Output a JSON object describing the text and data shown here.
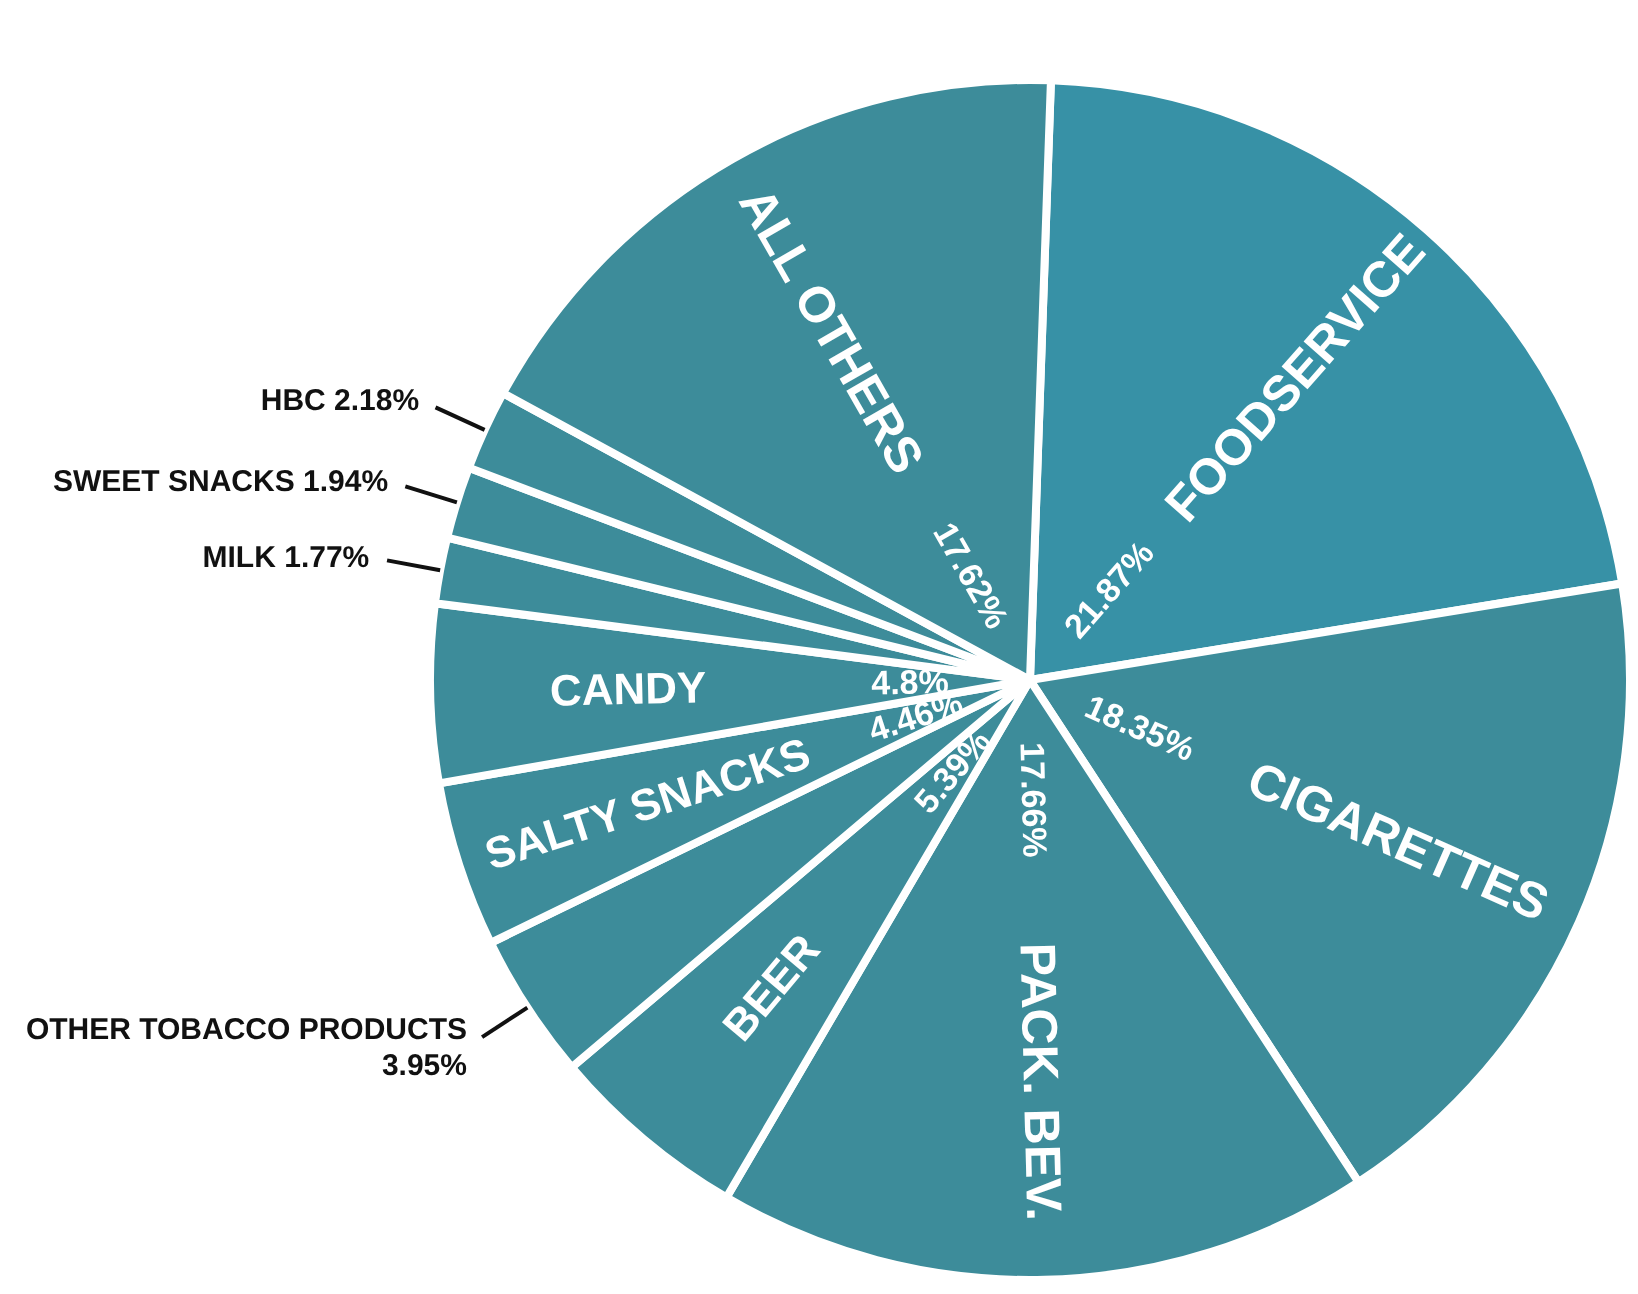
{
  "chart_data": {
    "type": "pie",
    "categories": [
      "FOODSERVICE",
      "CIGARETTES",
      "PACK. BEV.",
      "BEER",
      "OTHER TOBACCO PRODUCTS",
      "SALTY SNACKS",
      "CANDY",
      "MILK",
      "SWEET SNACKS",
      "HBC",
      "ALL OTHERS"
    ],
    "values": [
      21.87,
      18.35,
      17.66,
      5.39,
      3.95,
      4.46,
      4.8,
      1.77,
      1.94,
      2.18,
      17.62
    ],
    "value_labels": [
      "21.87%",
      "18.35%",
      "17.66%",
      "5.39%",
      "3.95%",
      "4.46%",
      "4.8%",
      "1.77%",
      "1.94%",
      "2.18%",
      "17.62%"
    ],
    "colors": [
      "#3791a6",
      "#3d8c9a",
      "#3d8c9a",
      "#3d8c9a",
      "#3d8c9a",
      "#3d8c9a",
      "#3d8c9a",
      "#3d8c9a",
      "#3d8c9a",
      "#3d8c9a",
      "#3d8c9a"
    ]
  }
}
